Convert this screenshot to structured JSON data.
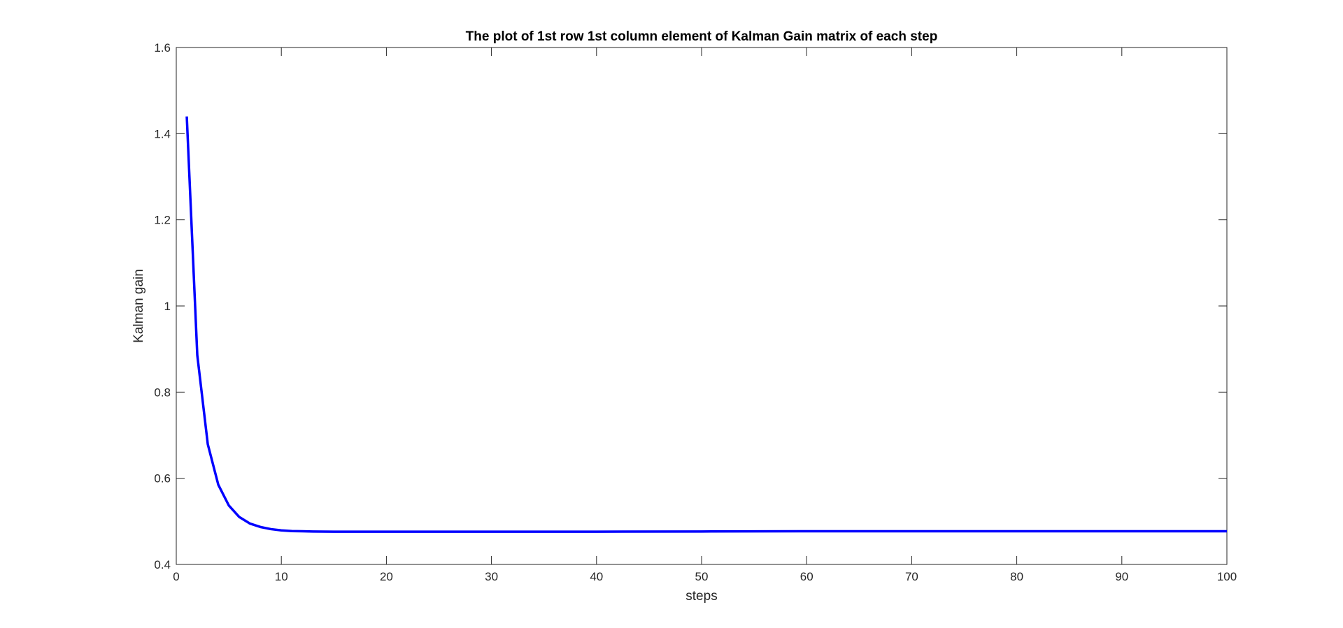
{
  "chart_data": {
    "type": "line",
    "title": "The plot of 1st row 1st column element of Kalman Gain matrix of each step",
    "xlabel": "steps",
    "ylabel": "Kalman gain",
    "xlim": [
      0,
      100
    ],
    "ylim": [
      0.4,
      1.6
    ],
    "xticks": [
      0,
      10,
      20,
      30,
      40,
      50,
      60,
      70,
      80,
      90,
      100
    ],
    "yticks": [
      0.4,
      0.6,
      0.8,
      1,
      1.2,
      1.4,
      1.6
    ],
    "xtick_labels": [
      "0",
      "10",
      "20",
      "30",
      "40",
      "50",
      "60",
      "70",
      "80",
      "90",
      "100"
    ],
    "ytick_labels": [
      "0.4",
      "0.6",
      "0.8",
      "1",
      "1.2",
      "1.4",
      "1.6"
    ],
    "grid": false,
    "box": true,
    "series": [
      {
        "color": "#0000ff",
        "x": [
          1,
          2,
          3,
          4,
          5,
          6,
          7,
          8,
          9,
          10,
          11,
          12,
          13,
          14,
          15,
          20,
          30,
          40,
          50,
          60,
          70,
          80,
          90,
          100
        ],
        "y": [
          1.44,
          0.886,
          0.679,
          0.585,
          0.537,
          0.51,
          0.495,
          0.487,
          0.482,
          0.479,
          0.4775,
          0.477,
          0.4765,
          0.4762,
          0.476,
          0.476,
          0.476,
          0.476,
          0.4765,
          0.477,
          0.477,
          0.477,
          0.477,
          0.477
        ]
      }
    ]
  }
}
